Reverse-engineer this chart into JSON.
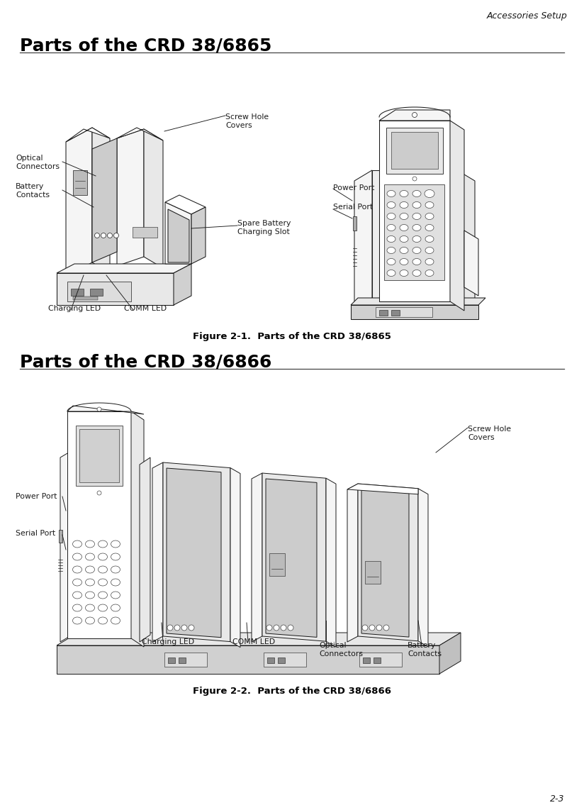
{
  "page_header": "Accessories Setup",
  "page_number": "2-3",
  "section1_title": "Parts of the CRD 38/6865",
  "figure1_caption": "Figure 2-1.  Parts of the CRD 38/6865",
  "section2_title": "Parts of the CRD 38/6866",
  "figure2_caption": "Figure 2-2.  Parts of the CRD 38/6866",
  "bg_color": "#ffffff",
  "text_color": "#000000",
  "label_fontsize": 7.8,
  "title_fontsize": 18,
  "caption_fontsize": 9.5,
  "header_fontsize": 9,
  "page_num_fontsize": 9
}
